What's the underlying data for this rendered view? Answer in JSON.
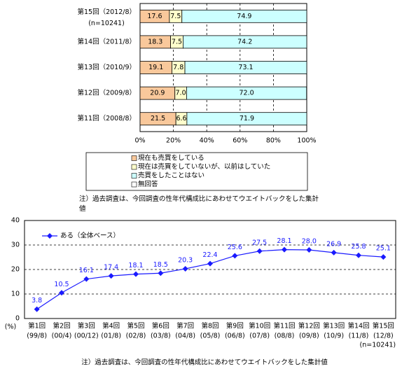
{
  "chart_data": [
    {
      "type": "stacked-bar-horizontal",
      "categories": [
        "第15回（2012/8）",
        "第14回（2011/8）",
        "第13回（2010/9）",
        "第12回（2009/8）",
        "第11回（2008/8）"
      ],
      "n_label": "(n=10241)",
      "series": [
        {
          "name": "現在も売買をしている",
          "color": "#f9c89b",
          "values": [
            17.6,
            18.3,
            19.1,
            20.9,
            21.5
          ],
          "value_labels": [
            "17.6",
            "18.3",
            "19.1",
            "20.9",
            "21.5"
          ]
        },
        {
          "name": "現在は売買をしていないが、以前はしていた",
          "color": "#ffffcc",
          "values": [
            7.5,
            7.5,
            7.8,
            7.0,
            6.6
          ],
          "value_labels": [
            "7.5",
            "7.5",
            "7.8",
            "7.0",
            "6.6"
          ]
        },
        {
          "name": "売買をしたことはない",
          "color": "#ccffff",
          "values": [
            74.9,
            74.2,
            73.1,
            72.0,
            71.9
          ],
          "value_labels": [
            "74.9",
            "74.2",
            "73.1",
            "72.0",
            "71.9"
          ]
        },
        {
          "name": "無回答",
          "color": "#ffffff",
          "values": [
            0,
            0,
            0,
            0,
            0
          ]
        }
      ],
      "xlim": [
        0,
        100
      ],
      "xticks": [
        {
          "value": 0,
          "label": "0%"
        },
        {
          "value": 20,
          "label": "20%"
        },
        {
          "value": 40,
          "label": "40%"
        },
        {
          "value": 60,
          "label": "60%"
        },
        {
          "value": 80,
          "label": "80%"
        },
        {
          "value": 100,
          "label": "100%"
        }
      ],
      "grid": true,
      "note": "注）過去調査は、今回調査の性年代構成比にあわせてウエイトバックをした集計値"
    },
    {
      "type": "line",
      "categories": [
        "第1回",
        "第2回",
        "第3回",
        "第4回",
        "第5回",
        "第6回",
        "第7回",
        "第8回",
        "第9回",
        "第10回",
        "第11回",
        "第12回",
        "第13回",
        "第14回",
        "第15回"
      ],
      "category_dates": [
        "(99/8)",
        "(00/4)",
        "(00/12)",
        "(01/8)",
        "(02/8)",
        "(03/8)",
        "(04/8)",
        "(05/8)",
        "(06/8)",
        "(07/8)",
        "(08/8)",
        "(09/8)",
        "(10/9)",
        "(11/8)",
        "(12/8)"
      ],
      "n_label": "(n=10241)",
      "y_label": "(%)",
      "series": [
        {
          "name": "ある（全体ベース）",
          "color": "#1a1aff",
          "values": [
            3.8,
            10.5,
            16.1,
            17.4,
            18.1,
            18.5,
            20.3,
            22.4,
            25.6,
            27.5,
            28.1,
            28.0,
            26.9,
            25.8,
            25.1
          ],
          "value_labels": [
            "3.8",
            "10.5",
            "16.1",
            "17.4",
            "18.1",
            "18.5",
            "20.3",
            "22.4",
            "25.6",
            "27.5",
            "28.1",
            "28.0",
            "26.9",
            "25.8",
            "25.1"
          ]
        }
      ],
      "ylim": [
        0,
        40
      ],
      "yticks": [
        0,
        10,
        20,
        30,
        40
      ],
      "grid": true,
      "note": "注）過去調査は、今回調査の性年代構成比にあわせてウエイトバックをした集計値"
    }
  ]
}
